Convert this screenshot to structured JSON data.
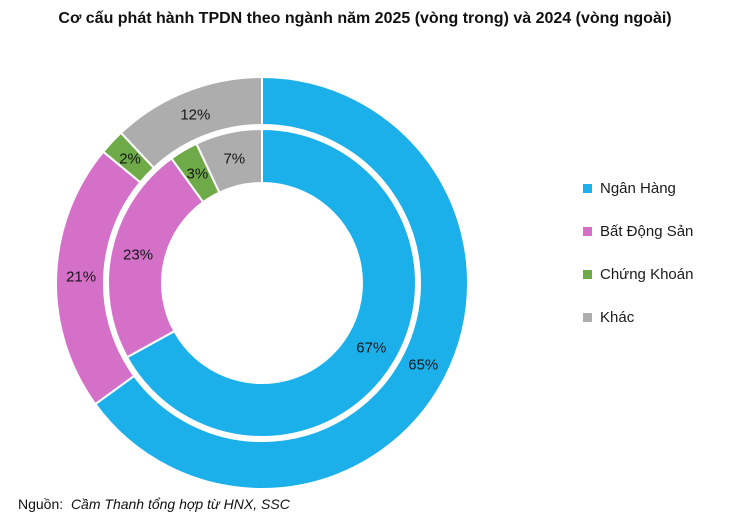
{
  "title": "Cơ cấu phát hành TPDN theo ngành năm 2025 (vòng trong) và 2024 (vòng ngoài)",
  "source": {
    "prefix": "Nguồn:",
    "text": "Cầm Thanh tổng hợp từ HNX, SSC"
  },
  "chart_data": {
    "type": "pie",
    "subtype": "double-ring-donut",
    "title": "Cơ cấu phát hành TPDN theo ngành năm 2025 (vòng trong) và 2024 (vòng ngoài)",
    "categories": [
      "Ngân Hàng",
      "Bất Động Sản",
      "Chứng Khoán",
      "Khác"
    ],
    "series": [
      {
        "name": "2025 (vòng trong)",
        "ring": "inner",
        "values": [
          67,
          23,
          3,
          7
        ]
      },
      {
        "name": "2024 (vòng ngoài)",
        "ring": "outer",
        "values": [
          65,
          21,
          2,
          12
        ]
      }
    ],
    "unit": "%",
    "colors": [
      "#1CB0EB",
      "#D470C8",
      "#6EAA47",
      "#ADADAD"
    ],
    "start_angle_deg": 0,
    "direction": "clockwise",
    "legend_position": "right",
    "labels": {
      "inner_ring": [
        "67%",
        "23%",
        "3%",
        "7%"
      ],
      "outer_ring": [
        "65%",
        "21%",
        "2%",
        "12%"
      ]
    }
  }
}
